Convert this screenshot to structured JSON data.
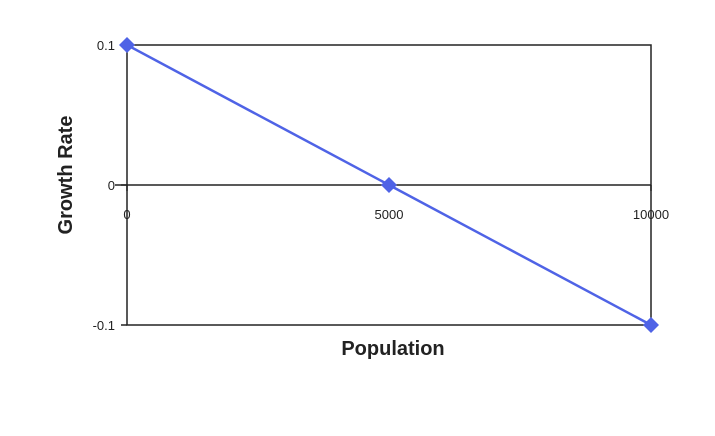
{
  "chart_data": {
    "type": "line",
    "title": "",
    "xlabel": "Population",
    "ylabel": "Growth Rate",
    "xlim": [
      0,
      10000
    ],
    "ylim": [
      -0.1,
      0.1
    ],
    "x_ticks": [
      0,
      5000,
      10000
    ],
    "x_tick_labels": [
      "0",
      "5000",
      "10000"
    ],
    "y_ticks": [
      0.1,
      0,
      -0.1
    ],
    "y_tick_labels": [
      "0.1",
      "0",
      "-0.1"
    ],
    "grid": false,
    "legend": "none",
    "series": [
      {
        "x": [
          0,
          5000,
          10000
        ],
        "values": [
          0.1,
          0,
          -0.1
        ],
        "color": "#4f63e6",
        "marker": "diamond"
      }
    ]
  }
}
